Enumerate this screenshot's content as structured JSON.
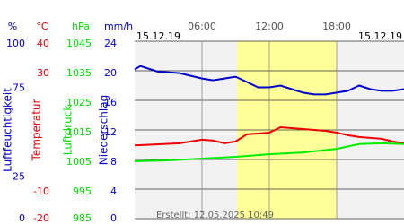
{
  "chart_data": {
    "type": "line",
    "date_left": "15.12.19",
    "date_right": "15.12.19",
    "footer": "Erstellt: 12.05.2025 10:49",
    "xlim": [
      0,
      24
    ],
    "xticks": [
      {
        "value": 6,
        "label": "06:00"
      },
      {
        "value": 12,
        "label": "12:00"
      },
      {
        "value": 18,
        "label": "18:00"
      }
    ],
    "grid": true,
    "highlight": {
      "xlim": [
        9.1,
        18
      ],
      "color": "#ffff99"
    },
    "axes": [
      {
        "unit": "%",
        "label": "Luftfeuchtigkeit",
        "color": "#0000cc",
        "lim": [
          0,
          100
        ],
        "ticks": [
          0,
          25,
          75,
          100
        ]
      },
      {
        "unit": "°C",
        "label": "Temperatur",
        "color": "#ee0000",
        "lim": [
          -20,
          40
        ],
        "ticks": [
          -20,
          -10,
          30,
          40
        ]
      },
      {
        "unit": "hPa",
        "label": "Luftdruck",
        "color": "#00dd00",
        "lim": [
          985,
          1045
        ],
        "ticks": [
          985,
          995,
          1005,
          1015,
          1025,
          1035,
          1045
        ]
      },
      {
        "unit": "mm/h",
        "label": "Niederschlag",
        "color": "#0000cc",
        "lim": [
          0,
          24
        ],
        "ticks": [
          0,
          4,
          8,
          12,
          16,
          20,
          24
        ]
      }
    ],
    "series": [
      {
        "axis": 0,
        "color": "#0000cc",
        "x": [
          0,
          0.5,
          2,
          4,
          6,
          7,
          8,
          9,
          10,
          11,
          12,
          13,
          14,
          15,
          16,
          17,
          18,
          19,
          20,
          21,
          22,
          23,
          24
        ],
        "values": [
          84,
          86,
          83,
          82,
          79,
          78,
          79,
          80,
          77,
          74,
          74,
          75,
          73,
          71,
          70,
          70,
          71,
          72,
          75,
          73,
          72,
          72,
          73
        ]
      },
      {
        "axis": 1,
        "color": "#ee0000",
        "x": [
          0,
          4,
          6,
          7,
          8,
          9,
          10,
          11,
          12,
          13,
          14,
          15,
          16,
          17,
          18,
          19,
          20,
          21,
          22,
          23,
          24
        ],
        "values": [
          4.8,
          5.5,
          6.7,
          6.4,
          5.5,
          6.1,
          8.5,
          8.8,
          9.1,
          10.9,
          10.6,
          10.3,
          10,
          9.7,
          9.1,
          8.2,
          7.6,
          7.3,
          7.0,
          6.1,
          5.5
        ]
      },
      {
        "axis": 2,
        "color": "#00ee00",
        "x": [
          0,
          3,
          6,
          9,
          12,
          15,
          18,
          20,
          22,
          24
        ],
        "values": [
          1004.4,
          1004.7,
          1005.3,
          1005.9,
          1006.8,
          1007.4,
          1008.6,
          1010.2,
          1010.5,
          1010.2
        ]
      }
    ]
  }
}
